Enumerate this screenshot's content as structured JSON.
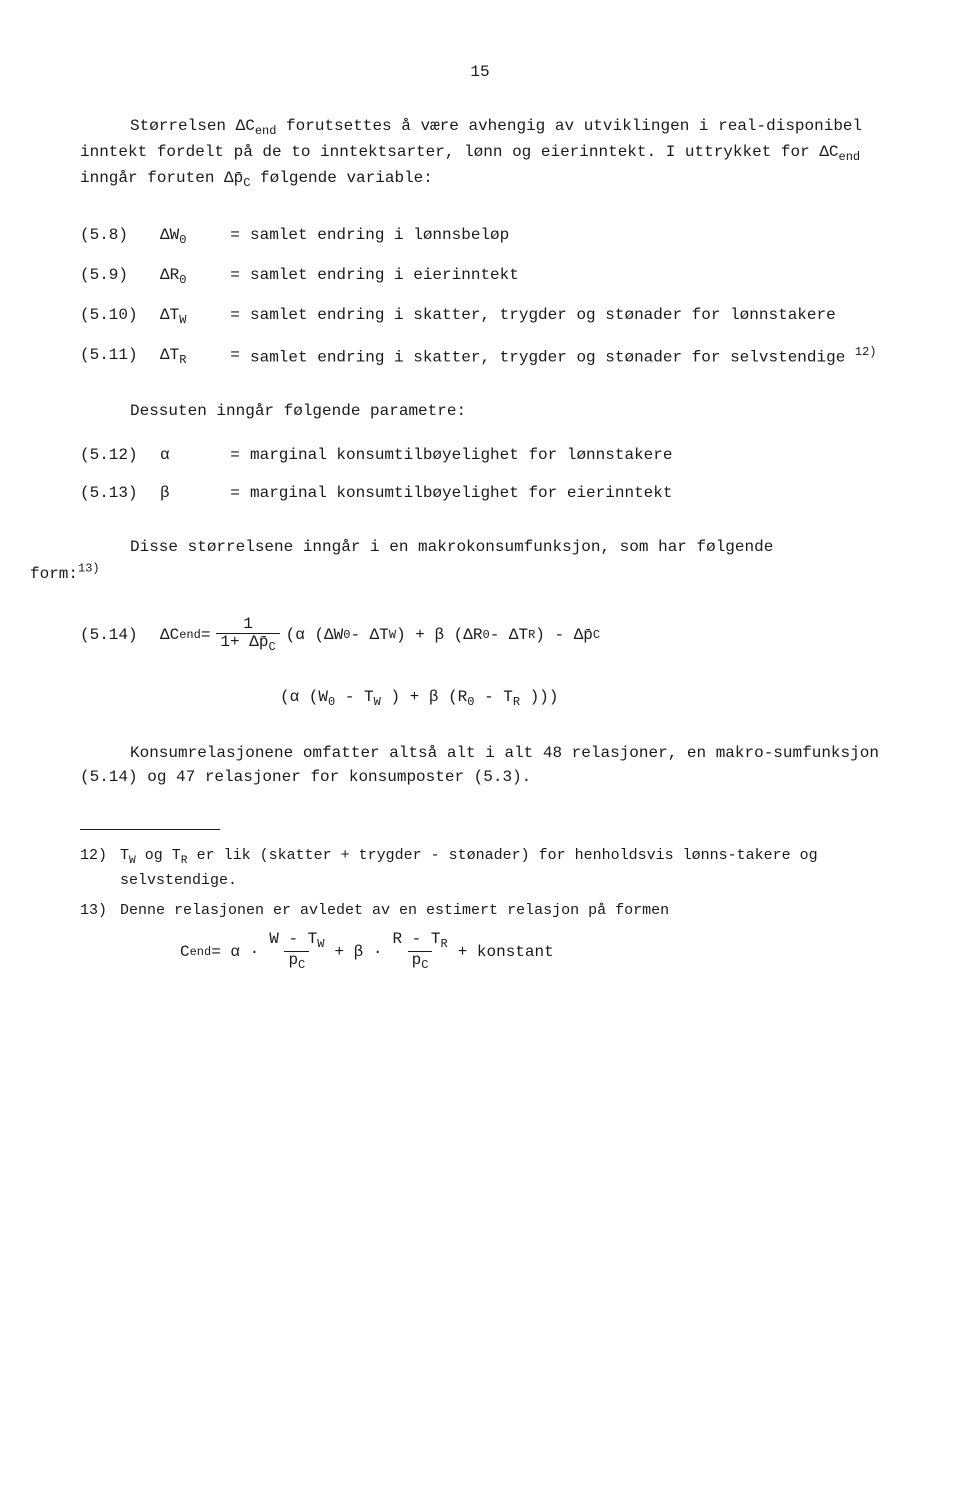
{
  "page_number": "15",
  "intro_paragraph": "Størrelsen ΔC",
  "intro_sub1": "end",
  "intro_cont1": " forutsettes å være avhengig av utviklingen i real-disponibel inntekt fordelt på de to inntektsarter, lønn og eierinntekt.  I uttrykket for ΔC",
  "intro_sub2": "end",
  "intro_cont2": " inngår foruten  Δp̄",
  "intro_sub3": "C",
  "intro_cont3": "  følgende variable:",
  "defs": [
    {
      "num": "(5.8)",
      "sym": "ΔW",
      "sub": "0",
      "text": "samlet endring i lønnsbeløp"
    },
    {
      "num": "(5.9)",
      "sym": "ΔR",
      "sub": "0",
      "text": "samlet endring i eierinntekt"
    },
    {
      "num": "(5.10)",
      "sym": "ΔT",
      "sub": "W",
      "text": "samlet endring i skatter, trygder og stønader for lønnstakere"
    },
    {
      "num": "(5.11)",
      "sym": "ΔT",
      "sub": "R",
      "text": "samlet endring i skatter, trygder og stønader for selvstendige ",
      "sup": "12)"
    }
  ],
  "mid_text": "Dessuten inngår følgende parametre:",
  "params": [
    {
      "num": "(5.12)",
      "sym": "α",
      "text": "marginal konsumtilbøyelighet for lønnstakere"
    },
    {
      "num": "(5.13)",
      "sym": "β",
      "text": "marginal konsumtilbøyelighet for eierinntekt"
    }
  ],
  "form_text_pre": "Disse størrelsene inngår i en makrokonsumfunksjon, som har følgende",
  "form_text_post": "form:",
  "form_sup": "13)",
  "eq514_num": "(5.14)",
  "eq514_lhs": "ΔC",
  "eq514_lhs_sub": "end",
  "eq514_eq": " = ",
  "eq514_frac_num": "1",
  "eq514_frac_den_pre": "1+ Δp̄",
  "eq514_frac_den_sub": "C",
  "eq514_rhs1": " (α (ΔW",
  "eq514_rhs1_sub": "0",
  "eq514_rhs2": " - ΔT",
  "eq514_rhs2_sub": "W",
  "eq514_rhs3": ") + β (ΔR",
  "eq514_rhs3_sub": "0",
  "eq514_rhs4": " - ΔT",
  "eq514_rhs4_sub": "R",
  "eq514_rhs5": ") - Δp̄",
  "eq514_rhs5_sub": "C",
  "eq514_line2_a": "(α (W",
  "eq514_line2_a_sub": "0",
  "eq514_line2_b": " - T",
  "eq514_line2_b_sub": "W",
  "eq514_line2_c": ") + β (R",
  "eq514_line2_c_sub": "0",
  "eq514_line2_d": " - T",
  "eq514_line2_d_sub": "R",
  "eq514_line2_e": ")))",
  "conclusion": "Konsumrelasjonene omfatter altså alt i alt 48 relasjoner, en makro-sumfunksjon (5.14) og 47 relasjoner for konsumposter (5.3).",
  "footnotes": [
    {
      "num": "12)",
      "text_a": "T",
      "sub_a": "W",
      "text_b": " og T",
      "sub_b": "R",
      "text_c": " er lik (skatter + trygder - stønader) for henholdsvis lønns-takere og selvstendige."
    },
    {
      "num": "13)",
      "text": "Denne relasjonen er avledet av en estimert relasjon på formen"
    }
  ],
  "fn_formula_lhs": "C",
  "fn_formula_lhs_sub": "end",
  "fn_formula_eq": "  =  α · ",
  "fn_frac1_num_a": "W - T",
  "fn_frac1_num_sub": "W",
  "fn_frac1_den": "p",
  "fn_frac1_den_sub": "C",
  "fn_formula_mid": " + β · ",
  "fn_frac2_num_a": "R - T",
  "fn_frac2_num_sub": "R",
  "fn_frac2_den": "p",
  "fn_frac2_den_sub": "C",
  "fn_formula_end": " + konstant"
}
